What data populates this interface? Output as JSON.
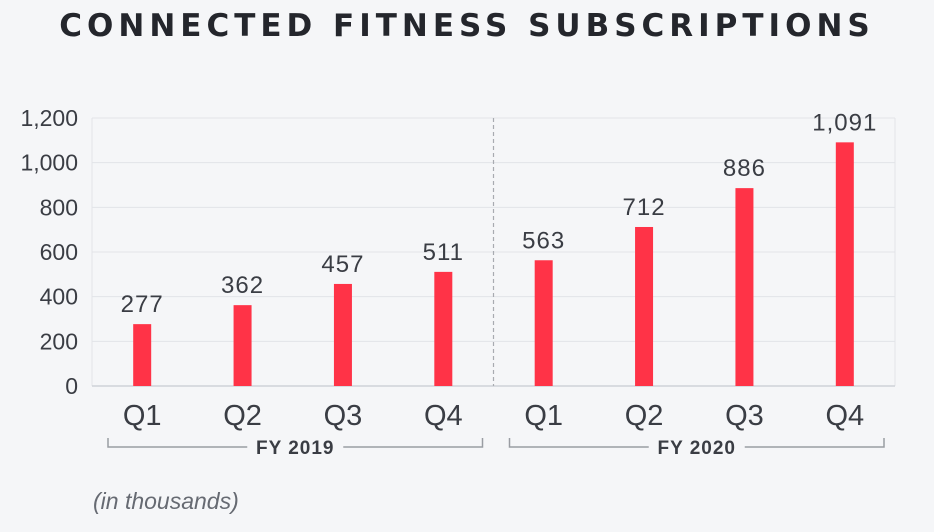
{
  "title": "CONNECTED FITNESS SUBSCRIPTIONS",
  "note": "(in thousands)",
  "colors": {
    "bar": "#ff3347",
    "text": "#3a3d44",
    "grid": "#e2e4e8",
    "bracket": "#9a9da3"
  },
  "chart_data": {
    "type": "bar",
    "title": "CONNECTED FITNESS SUBSCRIPTIONS",
    "categories": [
      "Q1",
      "Q2",
      "Q3",
      "Q4",
      "Q1",
      "Q2",
      "Q3",
      "Q4"
    ],
    "values": [
      277,
      362,
      457,
      511,
      563,
      712,
      886,
      1091
    ],
    "value_labels": [
      "277",
      "362",
      "457",
      "511",
      "563",
      "712",
      "886",
      "1,091"
    ],
    "groups": [
      {
        "label": "FY 2019",
        "categories": [
          0,
          1,
          2,
          3
        ]
      },
      {
        "label": "FY 2020",
        "categories": [
          4,
          5,
          6,
          7
        ]
      }
    ],
    "yticks": [
      "0",
      "200",
      "400",
      "600",
      "800",
      "1,000",
      "1,200"
    ],
    "ytick_values": [
      0,
      200,
      400,
      600,
      800,
      1000,
      1200
    ],
    "ylim": [
      0,
      1200
    ],
    "xlabel": "",
    "ylabel": "",
    "grid": true,
    "legend": "none"
  }
}
